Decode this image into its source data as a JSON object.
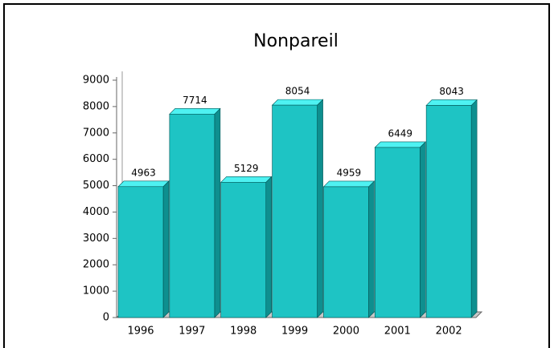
{
  "chart_data": {
    "type": "bar",
    "title": "Nonpareil",
    "categories": [
      "1996",
      "1997",
      "1998",
      "1999",
      "2000",
      "2001",
      "2002"
    ],
    "values": [
      4963,
      7714,
      5129,
      8054,
      4959,
      6449,
      8043
    ],
    "color": "#1ec4c4",
    "ylim": [
      0,
      9000
    ],
    "yticks": [
      0,
      1000,
      2000,
      3000,
      4000,
      5000,
      6000,
      7000,
      8000,
      9000
    ],
    "grid": false
  }
}
